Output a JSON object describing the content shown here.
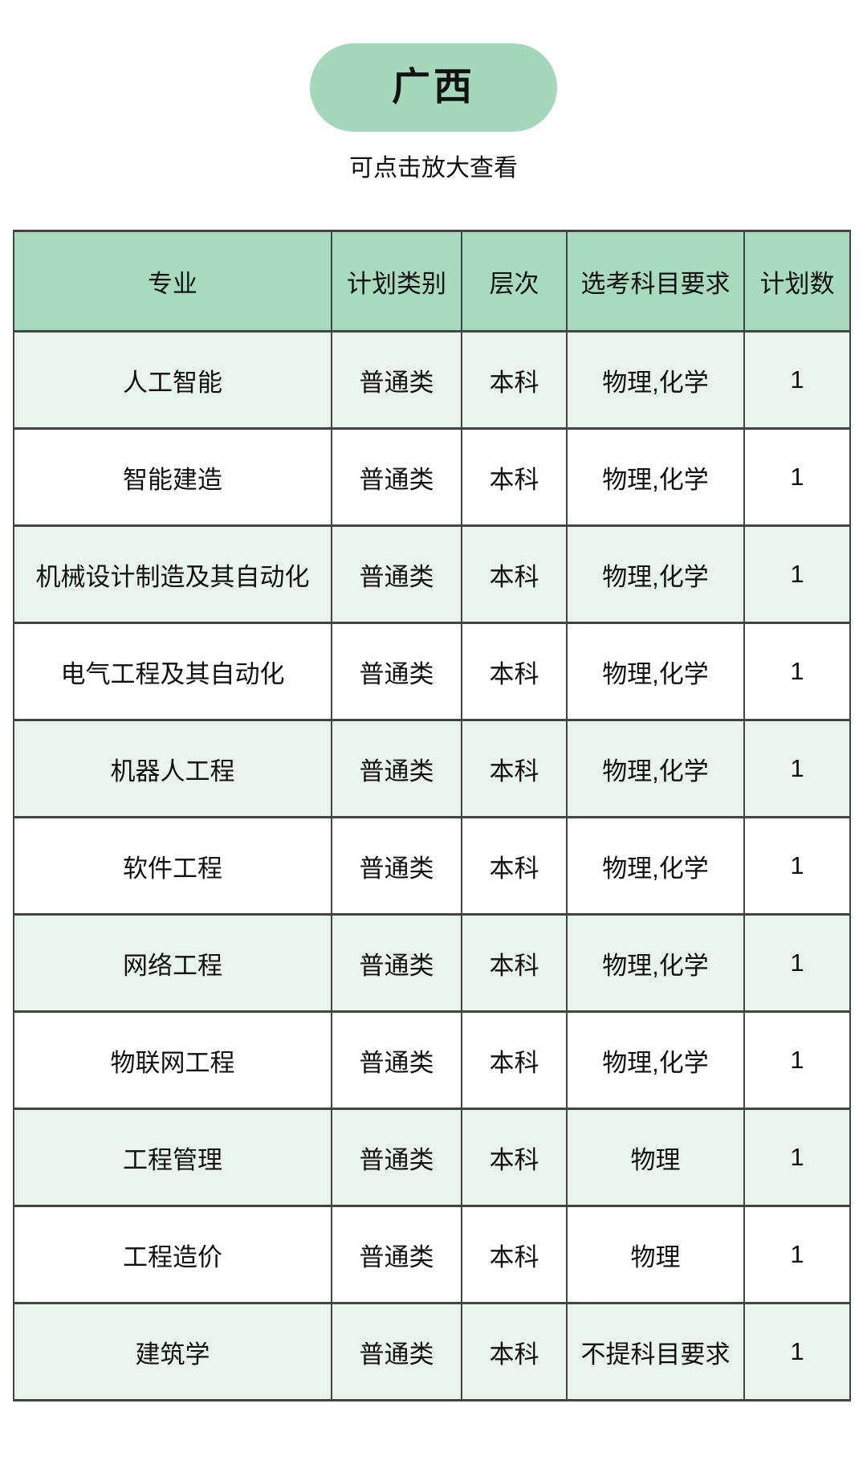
{
  "header": {
    "badge": "广西",
    "hint": "可点击放大查看"
  },
  "colors": {
    "badge_bg": "#a5d8ba",
    "header_bg": "#a8dabd",
    "row_alt_bg": "#e9f4ee",
    "row_bg": "#ffffff",
    "border_color": "#414644",
    "text_color": "#111111",
    "page_bg": "#ffffff"
  },
  "table": {
    "columns": [
      "专业",
      "计划类别",
      "层次",
      "选考科目要求",
      "计划数"
    ],
    "rows": [
      [
        "人工智能",
        "普通类",
        "本科",
        "物理,化学",
        "1"
      ],
      [
        "智能建造",
        "普通类",
        "本科",
        "物理,化学",
        "1"
      ],
      [
        "机械设计制造及其自动化",
        "普通类",
        "本科",
        "物理,化学",
        "1"
      ],
      [
        "电气工程及其自动化",
        "普通类",
        "本科",
        "物理,化学",
        "1"
      ],
      [
        "机器人工程",
        "普通类",
        "本科",
        "物理,化学",
        "1"
      ],
      [
        "软件工程",
        "普通类",
        "本科",
        "物理,化学",
        "1"
      ],
      [
        "网络工程",
        "普通类",
        "本科",
        "物理,化学",
        "1"
      ],
      [
        "物联网工程",
        "普通类",
        "本科",
        "物理,化学",
        "1"
      ],
      [
        "工程管理",
        "普通类",
        "本科",
        "物理",
        "1"
      ],
      [
        "工程造价",
        "普通类",
        "本科",
        "物理",
        "1"
      ],
      [
        "建筑学",
        "普通类",
        "本科",
        "不提科目要求",
        "1"
      ]
    ]
  }
}
